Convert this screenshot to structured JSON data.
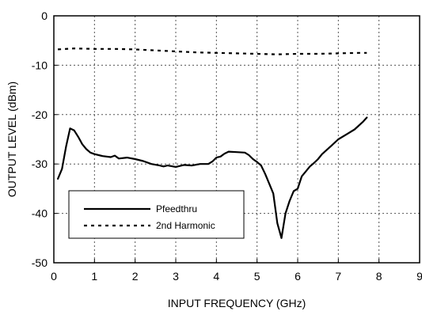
{
  "chart_data": {
    "type": "line",
    "xlabel": "INPUT FREQUENCY (GHz)",
    "ylabel": "OUTPUT LEVEL (dBm)",
    "xlim": [
      0,
      9
    ],
    "ylim": [
      -50,
      0
    ],
    "x_ticks": [
      "0",
      "1",
      "2",
      "3",
      "4",
      "5",
      "6",
      "7",
      "8",
      "9"
    ],
    "y_ticks": [
      "0",
      "-10",
      "-20",
      "-30",
      "-40",
      "-50"
    ],
    "grid": true,
    "legend_position": "bottom-left",
    "series": [
      {
        "name": "Pfeedthru",
        "style": "solid",
        "color": "#000000",
        "points": [
          [
            0.1,
            -33.0
          ],
          [
            0.2,
            -31.0
          ],
          [
            0.3,
            -26.5
          ],
          [
            0.4,
            -22.8
          ],
          [
            0.5,
            -23.2
          ],
          [
            0.6,
            -24.5
          ],
          [
            0.7,
            -26.0
          ],
          [
            0.8,
            -27.0
          ],
          [
            0.9,
            -27.7
          ],
          [
            1.0,
            -28.0
          ],
          [
            1.2,
            -28.4
          ],
          [
            1.4,
            -28.6
          ],
          [
            1.5,
            -28.3
          ],
          [
            1.6,
            -28.9
          ],
          [
            1.8,
            -28.7
          ],
          [
            2.0,
            -29.0
          ],
          [
            2.2,
            -29.4
          ],
          [
            2.4,
            -30.0
          ],
          [
            2.6,
            -30.3
          ],
          [
            2.7,
            -30.5
          ],
          [
            2.8,
            -30.3
          ],
          [
            3.0,
            -30.6
          ],
          [
            3.2,
            -30.2
          ],
          [
            3.4,
            -30.3
          ],
          [
            3.6,
            -30.0
          ],
          [
            3.8,
            -30.0
          ],
          [
            3.9,
            -29.5
          ],
          [
            4.0,
            -28.7
          ],
          [
            4.1,
            -28.5
          ],
          [
            4.2,
            -27.9
          ],
          [
            4.3,
            -27.5
          ],
          [
            4.5,
            -27.6
          ],
          [
            4.7,
            -27.7
          ],
          [
            4.8,
            -28.2
          ],
          [
            4.9,
            -29.0
          ],
          [
            5.0,
            -29.6
          ],
          [
            5.1,
            -30.3
          ],
          [
            5.2,
            -32.0
          ],
          [
            5.3,
            -34.0
          ],
          [
            5.4,
            -36.0
          ],
          [
            5.5,
            -42.0
          ],
          [
            5.6,
            -45.0
          ],
          [
            5.7,
            -40.0
          ],
          [
            5.8,
            -37.5
          ],
          [
            5.9,
            -35.5
          ],
          [
            6.0,
            -35.0
          ],
          [
            6.1,
            -32.5
          ],
          [
            6.2,
            -31.5
          ],
          [
            6.3,
            -30.5
          ],
          [
            6.4,
            -29.8
          ],
          [
            6.5,
            -29.0
          ],
          [
            6.6,
            -28.0
          ],
          [
            6.8,
            -26.5
          ],
          [
            7.0,
            -25.0
          ],
          [
            7.2,
            -24.0
          ],
          [
            7.4,
            -23.0
          ],
          [
            7.6,
            -21.5
          ],
          [
            7.7,
            -20.6
          ]
        ]
      },
      {
        "name": "2nd Harmonic",
        "style": "dashed",
        "color": "#000000",
        "points": [
          [
            0.1,
            -6.8
          ],
          [
            0.5,
            -6.6
          ],
          [
            1.0,
            -6.7
          ],
          [
            1.5,
            -6.7
          ],
          [
            2.0,
            -6.8
          ],
          [
            2.5,
            -7.0
          ],
          [
            3.0,
            -7.2
          ],
          [
            3.5,
            -7.4
          ],
          [
            4.0,
            -7.5
          ],
          [
            4.5,
            -7.6
          ],
          [
            5.0,
            -7.7
          ],
          [
            5.5,
            -7.8
          ],
          [
            6.0,
            -7.7
          ],
          [
            6.5,
            -7.7
          ],
          [
            7.0,
            -7.6
          ],
          [
            7.5,
            -7.5
          ],
          [
            7.7,
            -7.5
          ]
        ]
      }
    ]
  }
}
